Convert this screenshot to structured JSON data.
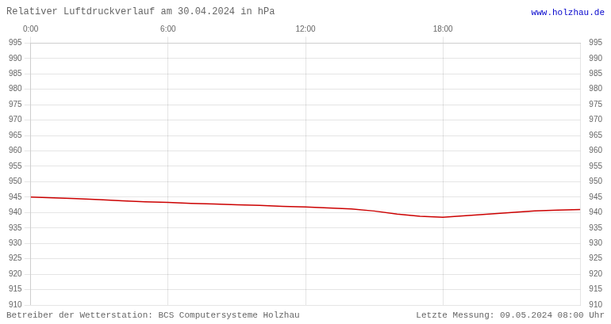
{
  "chart_data": {
    "type": "line",
    "title": "Relativer Luftdruckverlauf am 30.04.2024 in hPa",
    "annotations": [
      {
        "text": "www.holzhau.de",
        "color": "#0000cc"
      },
      {
        "text": "Betreiber der Wetterstation: BCS Computersysteme Holzhau"
      },
      {
        "text": "Letzte Messung: 09.05.2024 08:00 Uhr"
      }
    ],
    "x": [
      0,
      60,
      120,
      180,
      240,
      300,
      360,
      420,
      480,
      540,
      600,
      660,
      720,
      780,
      840,
      900,
      960,
      1020,
      1080,
      1140,
      1200,
      1260,
      1320,
      1380,
      1440
    ],
    "values": [
      945.0,
      944.8,
      944.5,
      944.2,
      943.8,
      943.5,
      943.3,
      943.0,
      942.8,
      942.5,
      942.3,
      942.0,
      941.8,
      941.5,
      941.2,
      940.5,
      939.5,
      938.8,
      938.5,
      939.0,
      939.5,
      940.0,
      940.5,
      940.8,
      941.0
    ],
    "color": "#cc0000",
    "xlim": [
      0,
      1440
    ],
    "xticks": [
      {
        "value": 0,
        "label": "0:00"
      },
      {
        "value": 360,
        "label": "6:00"
      },
      {
        "value": 720,
        "label": "12:00"
      },
      {
        "value": 1080,
        "label": "18:00"
      }
    ],
    "ylim": [
      910,
      995
    ],
    "yticks": [
      910,
      915,
      920,
      925,
      930,
      935,
      940,
      945,
      950,
      955,
      960,
      965,
      970,
      975,
      980,
      985,
      990,
      995
    ],
    "y2lim": [
      910,
      995
    ],
    "y2ticks": [
      910,
      915,
      920,
      925,
      930,
      935,
      940,
      945,
      950,
      955,
      960,
      965,
      970,
      975,
      980,
      985,
      990,
      995
    ],
    "grid": true
  }
}
